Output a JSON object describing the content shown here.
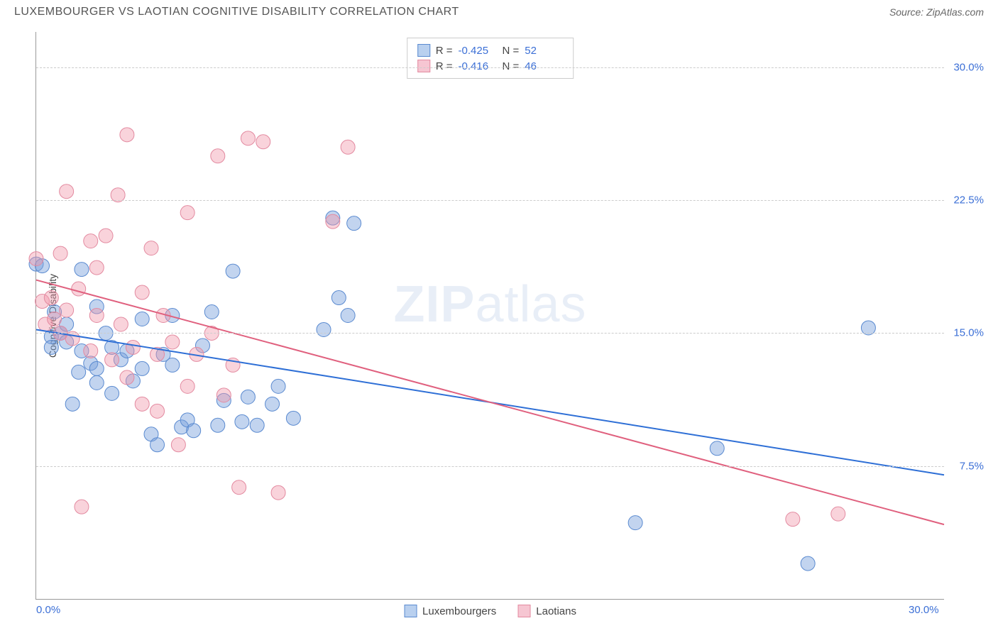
{
  "header": {
    "title": "LUXEMBOURGER VS LAOTIAN COGNITIVE DISABILITY CORRELATION CHART",
    "source": "Source: ZipAtlas.com"
  },
  "chart": {
    "type": "scatter",
    "y_axis_title": "Cognitive Disability",
    "watermark": {
      "bold": "ZIP",
      "rest": "atlas"
    },
    "x_range": [
      0,
      30
    ],
    "y_range": [
      0,
      32
    ],
    "x_ticks": [
      {
        "value": 0,
        "label": "0.0%"
      },
      {
        "value": 30,
        "label": "30.0%"
      }
    ],
    "y_ticks": [
      {
        "value": 7.5,
        "label": "7.5%"
      },
      {
        "value": 15.0,
        "label": "15.0%"
      },
      {
        "value": 22.5,
        "label": "22.5%"
      },
      {
        "value": 30.0,
        "label": "30.0%"
      }
    ],
    "grid_color": "#cccccc",
    "background_color": "#ffffff",
    "series": [
      {
        "name": "Luxembourgers",
        "color_fill": "rgba(120,160,220,0.45)",
        "color_stroke": "#5a8ad0",
        "swatch_fill": "#b9d0ef",
        "swatch_border": "#5a8ad0",
        "stats": {
          "R": "-0.425",
          "N": "52"
        },
        "trendline": {
          "x1": 0,
          "y1": 15.2,
          "x2": 30,
          "y2": 7.0,
          "color": "#2e6fd6",
          "width": 2
        },
        "marker_radius": 10,
        "points": [
          [
            0.0,
            18.9
          ],
          [
            0.2,
            18.8
          ],
          [
            0.5,
            14.8
          ],
          [
            0.5,
            14.2
          ],
          [
            0.6,
            16.2
          ],
          [
            0.8,
            15.0
          ],
          [
            1.0,
            15.5
          ],
          [
            1.0,
            14.5
          ],
          [
            1.2,
            11.0
          ],
          [
            1.4,
            12.8
          ],
          [
            1.5,
            18.6
          ],
          [
            1.5,
            14.0
          ],
          [
            1.8,
            13.3
          ],
          [
            2.0,
            12.2
          ],
          [
            2.0,
            16.5
          ],
          [
            2.0,
            13.0
          ],
          [
            2.3,
            15.0
          ],
          [
            2.5,
            14.2
          ],
          [
            2.5,
            11.6
          ],
          [
            2.8,
            13.5
          ],
          [
            3.0,
            14.0
          ],
          [
            3.2,
            12.3
          ],
          [
            3.5,
            15.8
          ],
          [
            3.5,
            13.0
          ],
          [
            3.8,
            9.3
          ],
          [
            4.0,
            8.7
          ],
          [
            4.2,
            13.8
          ],
          [
            4.5,
            16.0
          ],
          [
            4.5,
            13.2
          ],
          [
            4.8,
            9.7
          ],
          [
            5.0,
            10.1
          ],
          [
            5.2,
            9.5
          ],
          [
            5.5,
            14.3
          ],
          [
            5.8,
            16.2
          ],
          [
            6.0,
            9.8
          ],
          [
            6.2,
            11.2
          ],
          [
            6.5,
            18.5
          ],
          [
            6.8,
            10.0
          ],
          [
            7.0,
            11.4
          ],
          [
            7.3,
            9.8
          ],
          [
            7.8,
            11.0
          ],
          [
            8.0,
            12.0
          ],
          [
            8.5,
            10.2
          ],
          [
            9.5,
            15.2
          ],
          [
            9.8,
            21.5
          ],
          [
            10.0,
            17.0
          ],
          [
            10.3,
            16.0
          ],
          [
            10.5,
            21.2
          ],
          [
            19.8,
            4.3
          ],
          [
            22.5,
            8.5
          ],
          [
            25.5,
            2.0
          ],
          [
            27.5,
            15.3
          ]
        ]
      },
      {
        "name": "Laotians",
        "color_fill": "rgba(240,150,170,0.42)",
        "color_stroke": "#e38aa0",
        "swatch_fill": "#f6c6d2",
        "swatch_border": "#e38aa0",
        "stats": {
          "R": "-0.416",
          "N": "46"
        },
        "trendline": {
          "x1": 0,
          "y1": 18.0,
          "x2": 30,
          "y2": 4.2,
          "color": "#e0607e",
          "width": 2
        },
        "marker_radius": 10,
        "points": [
          [
            0.0,
            19.2
          ],
          [
            0.2,
            16.8
          ],
          [
            0.3,
            15.5
          ],
          [
            0.5,
            17.0
          ],
          [
            0.6,
            15.8
          ],
          [
            0.8,
            19.5
          ],
          [
            0.8,
            15.0
          ],
          [
            1.0,
            23.0
          ],
          [
            1.0,
            16.3
          ],
          [
            1.2,
            14.7
          ],
          [
            1.4,
            17.5
          ],
          [
            1.5,
            5.2
          ],
          [
            1.8,
            20.2
          ],
          [
            1.8,
            14.0
          ],
          [
            2.0,
            16.0
          ],
          [
            2.0,
            18.7
          ],
          [
            2.3,
            20.5
          ],
          [
            2.5,
            13.5
          ],
          [
            2.7,
            22.8
          ],
          [
            2.8,
            15.5
          ],
          [
            3.0,
            26.2
          ],
          [
            3.0,
            12.5
          ],
          [
            3.2,
            14.2
          ],
          [
            3.5,
            17.3
          ],
          [
            3.5,
            11.0
          ],
          [
            3.8,
            19.8
          ],
          [
            4.0,
            13.8
          ],
          [
            4.0,
            10.6
          ],
          [
            4.2,
            16.0
          ],
          [
            4.5,
            14.5
          ],
          [
            4.7,
            8.7
          ],
          [
            5.0,
            21.8
          ],
          [
            5.0,
            12.0
          ],
          [
            5.3,
            13.8
          ],
          [
            5.8,
            15.0
          ],
          [
            6.0,
            25.0
          ],
          [
            6.2,
            11.5
          ],
          [
            6.5,
            13.2
          ],
          [
            6.7,
            6.3
          ],
          [
            7.0,
            26.0
          ],
          [
            7.5,
            25.8
          ],
          [
            8.0,
            6.0
          ],
          [
            9.8,
            21.3
          ],
          [
            10.3,
            25.5
          ],
          [
            25.0,
            4.5
          ],
          [
            26.5,
            4.8
          ]
        ]
      }
    ]
  }
}
